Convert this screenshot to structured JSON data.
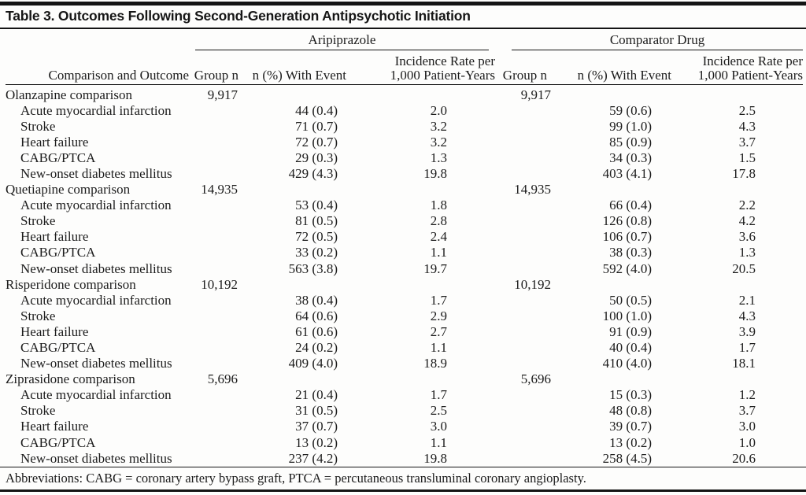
{
  "title": "Table 3. Outcomes Following Second-Generation Antipsychotic Initiation",
  "colors": {
    "background": "#fdfdfc",
    "text": "#1c1c1c",
    "rule": "#141414"
  },
  "table": {
    "group_headers": {
      "aripiprazole": "Aripiprazole",
      "comparator": "Comparator Drug"
    },
    "col_headers": {
      "outcome": "Comparison and Outcome",
      "group_n": "Group n",
      "n_event": "n (%) With Event",
      "incidence_line1": "Incidence Rate per",
      "incidence_line2": "1,000 Patient-Years"
    },
    "sections": [
      {
        "label": "Olanzapine comparison",
        "arip_group_n": "9,917",
        "comp_group_n": "9,917",
        "rows": [
          {
            "outcome": "Acute myocardial infarction",
            "arip_n_event": "44 (0.4)",
            "arip_rate": "2.0",
            "comp_n_event": "59 (0.6)",
            "comp_rate": "2.5"
          },
          {
            "outcome": "Stroke",
            "arip_n_event": "71 (0.7)",
            "arip_rate": "3.2",
            "comp_n_event": "99 (1.0)",
            "comp_rate": "4.3"
          },
          {
            "outcome": "Heart failure",
            "arip_n_event": "72 (0.7)",
            "arip_rate": "3.2",
            "comp_n_event": "85 (0.9)",
            "comp_rate": "3.7"
          },
          {
            "outcome": "CABG/PTCA",
            "arip_n_event": "29 (0.3)",
            "arip_rate": "1.3",
            "comp_n_event": "34 (0.3)",
            "comp_rate": "1.5"
          },
          {
            "outcome": "New-onset diabetes mellitus",
            "arip_n_event": "429 (4.3)",
            "arip_rate": "19.8",
            "comp_n_event": "403 (4.1)",
            "comp_rate": "17.8"
          }
        ]
      },
      {
        "label": "Quetiapine comparison",
        "arip_group_n": "14,935",
        "comp_group_n": "14,935",
        "rows": [
          {
            "outcome": "Acute myocardial infarction",
            "arip_n_event": "53 (0.4)",
            "arip_rate": "1.8",
            "comp_n_event": "66 (0.4)",
            "comp_rate": "2.2"
          },
          {
            "outcome": "Stroke",
            "arip_n_event": "81 (0.5)",
            "arip_rate": "2.8",
            "comp_n_event": "126 (0.8)",
            "comp_rate": "4.2"
          },
          {
            "outcome": "Heart failure",
            "arip_n_event": "72 (0.5)",
            "arip_rate": "2.4",
            "comp_n_event": "106 (0.7)",
            "comp_rate": "3.6"
          },
          {
            "outcome": "CABG/PTCA",
            "arip_n_event": "33 (0.2)",
            "arip_rate": "1.1",
            "comp_n_event": "38 (0.3)",
            "comp_rate": "1.3"
          },
          {
            "outcome": "New-onset diabetes mellitus",
            "arip_n_event": "563 (3.8)",
            "arip_rate": "19.7",
            "comp_n_event": "592 (4.0)",
            "comp_rate": "20.5"
          }
        ]
      },
      {
        "label": "Risperidone comparison",
        "arip_group_n": "10,192",
        "comp_group_n": "10,192",
        "rows": [
          {
            "outcome": "Acute myocardial infarction",
            "arip_n_event": "38 (0.4)",
            "arip_rate": "1.7",
            "comp_n_event": "50 (0.5)",
            "comp_rate": "2.1"
          },
          {
            "outcome": "Stroke",
            "arip_n_event": "64 (0.6)",
            "arip_rate": "2.9",
            "comp_n_event": "100 (1.0)",
            "comp_rate": "4.3"
          },
          {
            "outcome": "Heart failure",
            "arip_n_event": "61 (0.6)",
            "arip_rate": "2.7",
            "comp_n_event": "91 (0.9)",
            "comp_rate": "3.9"
          },
          {
            "outcome": "CABG/PTCA",
            "arip_n_event": "24 (0.2)",
            "arip_rate": "1.1",
            "comp_n_event": "40 (0.4)",
            "comp_rate": "1.7"
          },
          {
            "outcome": "New-onset diabetes mellitus",
            "arip_n_event": "409 (4.0)",
            "arip_rate": "18.9",
            "comp_n_event": "410 (4.0)",
            "comp_rate": "18.1"
          }
        ]
      },
      {
        "label": "Ziprasidone comparison",
        "arip_group_n": "5,696",
        "comp_group_n": "5,696",
        "rows": [
          {
            "outcome": "Acute myocardial infarction",
            "arip_n_event": "21 (0.4)",
            "arip_rate": "1.7",
            "comp_n_event": "15 (0.3)",
            "comp_rate": "1.2"
          },
          {
            "outcome": "Stroke",
            "arip_n_event": "31 (0.5)",
            "arip_rate": "2.5",
            "comp_n_event": "48 (0.8)",
            "comp_rate": "3.7"
          },
          {
            "outcome": "Heart failure",
            "arip_n_event": "37 (0.7)",
            "arip_rate": "3.0",
            "comp_n_event": "39 (0.7)",
            "comp_rate": "3.0"
          },
          {
            "outcome": "CABG/PTCA",
            "arip_n_event": "13 (0.2)",
            "arip_rate": "1.1",
            "comp_n_event": "13 (0.2)",
            "comp_rate": "1.0"
          },
          {
            "outcome": "New-onset diabetes mellitus",
            "arip_n_event": "237 (4.2)",
            "arip_rate": "19.8",
            "comp_n_event": "258 (4.5)",
            "comp_rate": "20.6"
          }
        ]
      }
    ],
    "footnote": "Abbreviations: CABG = coronary artery bypass graft, PTCA = percutaneous transluminal coronary angioplasty."
  }
}
